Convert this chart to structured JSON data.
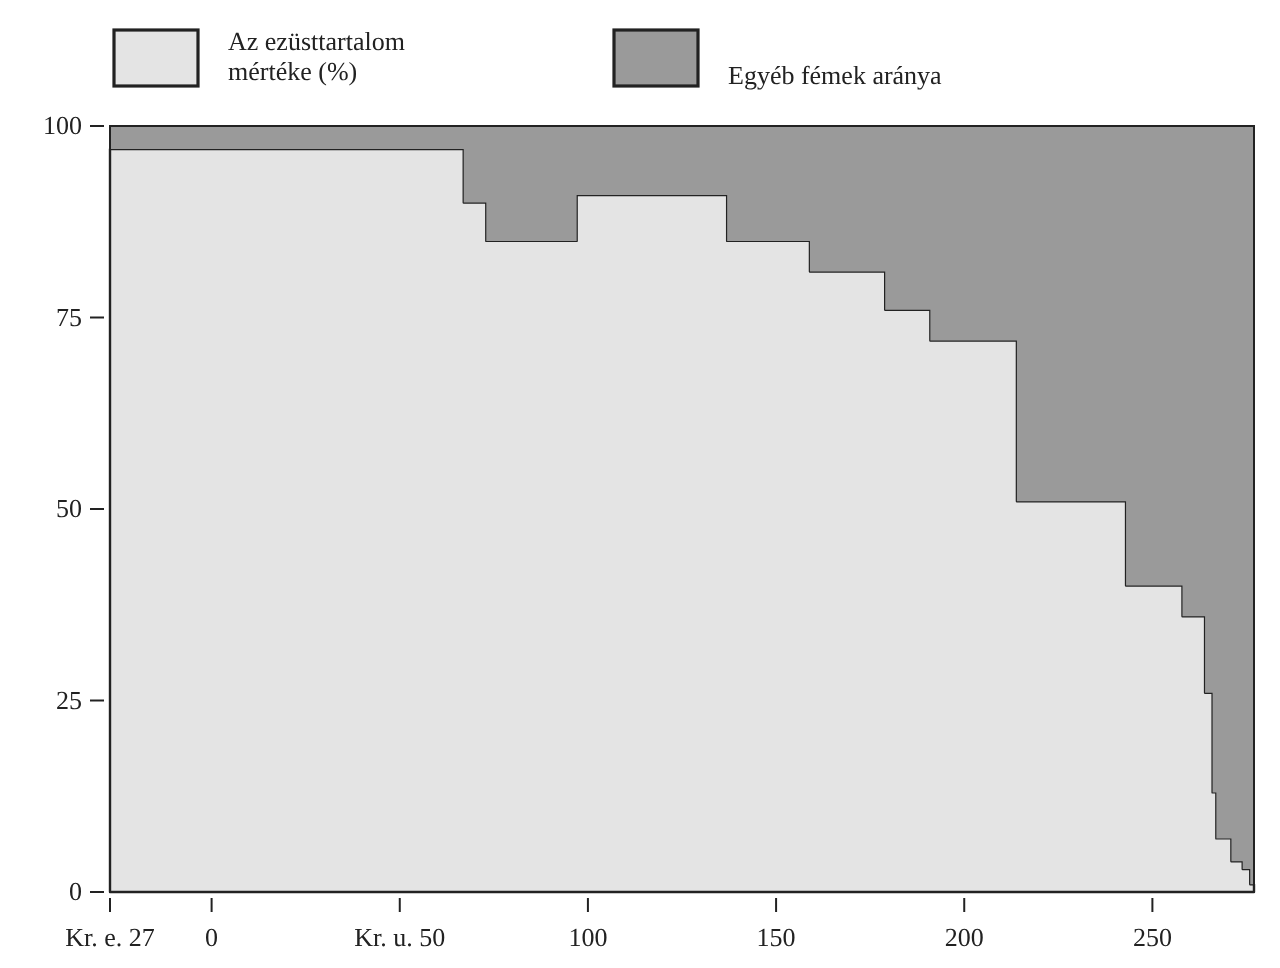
{
  "chart_data": {
    "type": "area",
    "stacked": true,
    "legend": "top",
    "x": [
      -27,
      67,
      67,
      73,
      73,
      97,
      97,
      137,
      137,
      159,
      159,
      179,
      179,
      191,
      191,
      214,
      214,
      243,
      243,
      258,
      258,
      264,
      264,
      266,
      266,
      267,
      267,
      271,
      271,
      274,
      274,
      276,
      276,
      277
    ],
    "series": [
      {
        "name": "Az ezüsttartalom mértéke (%)",
        "color": "#e4e4e4",
        "values": [
          97,
          97,
          90,
          90,
          85,
          85,
          91,
          91,
          85,
          85,
          81,
          81,
          76,
          76,
          72,
          72,
          51,
          51,
          40,
          40,
          36,
          36,
          26,
          26,
          13,
          13,
          7,
          7,
          4,
          4,
          3,
          3,
          1,
          1
        ]
      },
      {
        "name": "Egyéb fémek aránya",
        "color": "#9a9a9a",
        "values": [
          3,
          3,
          10,
          10,
          15,
          15,
          9,
          9,
          15,
          15,
          19,
          19,
          24,
          24,
          28,
          28,
          49,
          49,
          60,
          60,
          64,
          64,
          74,
          74,
          87,
          87,
          93,
          93,
          96,
          96,
          97,
          97,
          99,
          99
        ]
      }
    ],
    "xlim": [
      -27,
      277
    ],
    "xticks": [
      {
        "value": -27,
        "label": "Kr. e. 27"
      },
      0,
      {
        "value": 50,
        "label": "Kr. u. 50"
      },
      100,
      150,
      200,
      250
    ],
    "ylim": [
      0,
      100
    ],
    "yticks": [
      0,
      25,
      50,
      75,
      100
    ]
  }
}
